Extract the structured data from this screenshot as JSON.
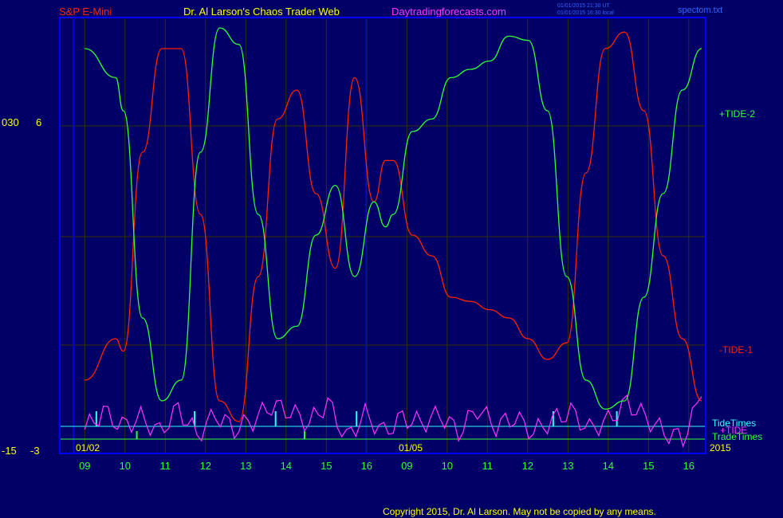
{
  "header": {
    "instrument": "S&P E-Mini",
    "site_title": "Dr. Al Larson's Chaos Trader Web",
    "site_url": "Daytradingforecasts.com",
    "stamp_line1": "01/01/2015 21:30 UT",
    "stamp_line2": "01/01/2015 16:30 local",
    "file_name": "spectom.txt"
  },
  "footer": {
    "copyright": "Copyright 2015, Dr. Al Larson. May not be copied by any means."
  },
  "colors": {
    "background": "#000066",
    "frame": "#0000ff",
    "grid": "#333300",
    "tide1": "#ff2200",
    "tide2": "#33ff33",
    "xtide": "#ff33ff",
    "tide_times": "#33ffff",
    "trade_times": "#33ff33",
    "hour_labels": "#33ff33",
    "date_labels": "#ffff00",
    "instrument_label": "#ff2200",
    "title": "#ffff00",
    "url": "#ff33ff"
  },
  "chart_data": {
    "type": "line",
    "title": "",
    "xlabel": "",
    "ylabel": "",
    "x_hour_labels": [
      "09",
      "10",
      "11",
      "12",
      "13",
      "14",
      "15",
      "16",
      "09",
      "10",
      "11",
      "12",
      "13",
      "14",
      "15",
      "16"
    ],
    "date_labels": [
      "01/02",
      "01/05",
      "2015"
    ],
    "left_axis": {
      "outer_top": "030",
      "outer_bottom": "-15",
      "inner_top": "6",
      "inner_bottom": "-3"
    },
    "x": [
      0.0,
      0.8,
      1.0,
      1.5,
      2.0,
      2.5,
      3.0,
      3.5,
      4.0,
      4.5,
      5.0,
      5.5,
      6.0,
      6.5,
      7.0,
      7.5,
      7.8,
      8.0,
      8.5,
      9.0,
      9.5,
      10.0,
      10.5,
      11.0,
      11.5,
      12.0,
      12.5,
      13.0,
      13.5,
      14.0,
      14.5,
      15.0,
      15.5,
      16.0
    ],
    "series": [
      {
        "name": "-TIDE-1",
        "values": [
          0.15,
          0.25,
          0.22,
          0.7,
          0.95,
          0.95,
          0.55,
          0.1,
          0.05,
          0.4,
          0.78,
          0.85,
          0.6,
          0.42,
          0.88,
          0.58,
          0.68,
          0.68,
          0.5,
          0.45,
          0.35,
          0.34,
          0.32,
          0.3,
          0.25,
          0.2,
          0.24,
          0.65,
          0.95,
          0.99,
          0.8,
          0.45,
          0.25,
          0.1
        ]
      },
      {
        "name": "+TIDE-2",
        "values": [
          0.95,
          0.88,
          0.8,
          0.3,
          0.1,
          0.15,
          0.7,
          1.0,
          0.96,
          0.55,
          0.25,
          0.28,
          0.5,
          0.62,
          0.4,
          0.58,
          0.52,
          0.55,
          0.75,
          0.78,
          0.88,
          0.9,
          0.92,
          0.98,
          0.97,
          0.8,
          0.4,
          0.15,
          0.08,
          0.1,
          0.35,
          0.6,
          0.85,
          0.95
        ]
      },
      {
        "name": "+TIDE",
        "values": [
          0.35,
          0.65,
          0.4,
          0.55,
          0.3,
          0.7,
          0.25,
          0.6,
          0.35,
          0.5,
          0.75,
          0.65,
          0.45,
          0.8,
          0.2,
          0.6,
          0.3,
          0.55,
          0.45,
          0.6,
          0.3,
          0.7,
          0.4,
          0.55,
          0.3,
          0.5,
          0.65,
          0.35,
          0.5,
          0.8,
          0.55,
          0.3,
          0.2,
          0.9
        ]
      }
    ],
    "tide_times": [
      0.3,
      2.85,
      4.95,
      7.05,
      12.15,
      13.8
    ],
    "trade_times": [
      1.35,
      5.7
    ],
    "series_labels": {
      "tide2": "+TIDE-2",
      "tide1": "-TIDE-1",
      "tide_times": "TideTimes",
      "xtide": "+TIDE",
      "trade_times": "TradeTimes"
    }
  }
}
